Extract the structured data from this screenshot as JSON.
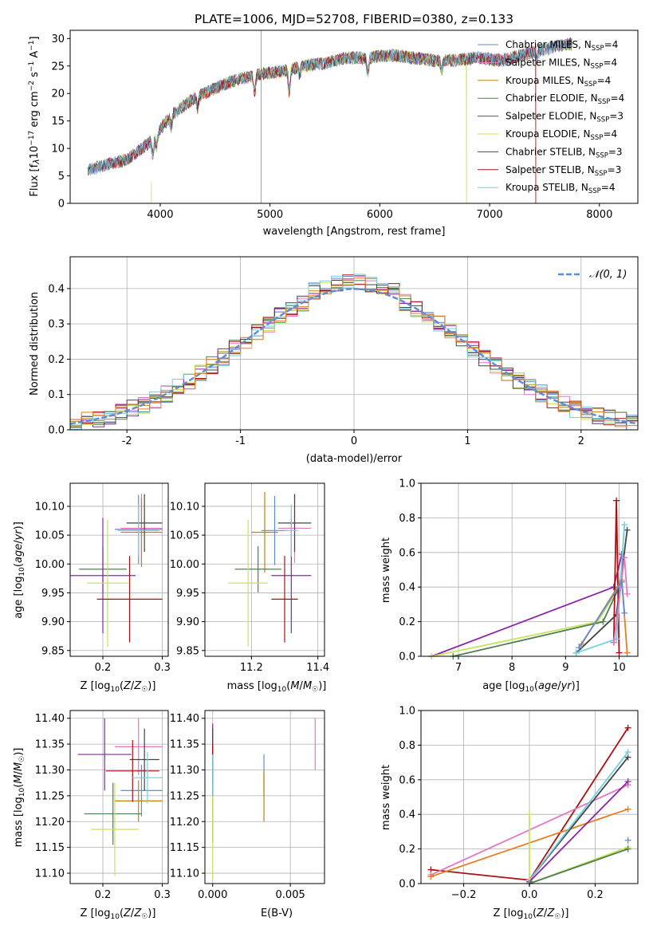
{
  "figure_title": "PLATE=1006, MJD=52708, FIBERID=0380, z=0.133",
  "colors": {
    "chabrier_miles": "#5f8dd3",
    "salpeter_miles": "#e377c2",
    "kroupa_miles": "#b8860b",
    "chabrier_elodie": "#4f7f4f",
    "salpeter_elodie": "#8e24aa",
    "kroupa_elodie": "#c6e35a",
    "chabrier_stelib": "#444444",
    "salpeter_stelib": "#aa1111",
    "kroupa_stelib": "#6fd0e0",
    "orange": "#e67e22",
    "gray": "#999999",
    "grid": "#b0b0b0"
  },
  "chart_data": [
    {
      "id": "spectrum",
      "type": "line",
      "xlabel": "wavelength [Angstrom, rest frame]",
      "ylabel": "Flux [f_λ 10^-17 erg cm^-2 s^-1 A^-1]",
      "xlim": [
        3180,
        8350
      ],
      "ylim": [
        0,
        31.5
      ],
      "xticks": [
        4000,
        5000,
        6000,
        7000,
        8000
      ],
      "yticks": [
        0,
        5,
        10,
        15,
        20,
        25,
        30
      ],
      "grid": false,
      "legend_position": "right",
      "legend": [
        {
          "main": "Chabrier MILES, N",
          "sub": "SSP",
          "tail": "=4"
        },
        {
          "main": "Salpeter MILES, N",
          "sub": "SSP",
          "tail": "=4"
        },
        {
          "main": "Kroupa MILES, N",
          "sub": "SSP",
          "tail": "=4"
        },
        {
          "main": "Chabrier ELODIE, N",
          "sub": "SSP",
          "tail": "=4"
        },
        {
          "main": "Salpeter ELODIE, N",
          "sub": "SSP",
          "tail": "=3"
        },
        {
          "main": "Kroupa ELODIE, N",
          "sub": "SSP",
          "tail": "=4"
        },
        {
          "main": "Chabrier STELIB, N",
          "sub": "SSP",
          "tail": "=3"
        },
        {
          "main": "Salpeter STELIB, N",
          "sub": "SSP",
          "tail": "=3"
        },
        {
          "main": "Kroupa STELIB, N",
          "sub": "SSP",
          "tail": "=4"
        }
      ],
      "continuum": {
        "x": [
          3340,
          3500,
          3700,
          3900,
          4100,
          4300,
          4500,
          4700,
          4900,
          5100,
          5300,
          5500,
          5700,
          5900,
          6100,
          6300,
          6500,
          6700,
          6900,
          7100,
          7300,
          7500,
          7700
        ],
        "y": [
          6,
          7,
          8,
          11,
          16,
          19,
          21,
          22.5,
          23.5,
          24,
          25,
          25.5,
          26.5,
          26.5,
          27,
          26.5,
          26,
          26,
          26.5,
          26,
          27,
          28,
          29
        ]
      },
      "notes": "Nine overlapping model spectra with deep absorption dips near 3950, 4860, 5180, 5890, 6780 and 7430 Angstrom"
    },
    {
      "id": "residual_hist",
      "type": "histogram",
      "xlabel": "(data-model)/error",
      "ylabel": "Normed distribution",
      "xlim": [
        -2.5,
        2.5
      ],
      "ylim": [
        0,
        0.49
      ],
      "xticks": [
        -2,
        -1,
        0,
        1,
        2
      ],
      "yticks": [
        0.0,
        0.1,
        0.2,
        0.3,
        0.4
      ],
      "grid": true,
      "legend_position": "top-right",
      "legend_label": "𝒩(0, 1)",
      "bin_width": 0.1
    },
    {
      "id": "age_vs_Z",
      "type": "errorbar",
      "xlabel": "Z [log10(Z/Z☉)]",
      "ylabel": "age  [log10(age/yr)]",
      "xlim": [
        0.145,
        0.31
      ],
      "ylim": [
        9.84,
        10.14
      ],
      "xticks": [
        0.2,
        0.3
      ],
      "xticklabels": [
        "0.2",
        "0.3"
      ],
      "yticks": [
        9.85,
        9.9,
        9.95,
        10.0,
        10.05,
        10.1
      ],
      "yticklabels": [
        "9.85",
        "9.90",
        "9.95",
        "10.00",
        "10.05",
        "10.10"
      ],
      "points": [
        {
          "color": "chabrier_miles",
          "x": 0.26,
          "xerr": 0.04,
          "y": 10.06,
          "yerr": 0.06
        },
        {
          "color": "salpeter_miles",
          "x": 0.265,
          "xerr": 0.035,
          "y": 10.062,
          "yerr": 0.06
        },
        {
          "color": "kroupa_miles",
          "x": 0.265,
          "xerr": 0.035,
          "y": 10.055,
          "yerr": 0.06
        },
        {
          "color": "chabrier_elodie",
          "x": 0.2,
          "xerr": 0.04,
          "y": 9.991,
          "yerr": 0.04
        },
        {
          "color": "salpeter_elodie",
          "x": 0.2,
          "xerr": 0.055,
          "y": 9.98,
          "yerr": 0.1
        },
        {
          "color": "kroupa_elodie",
          "x": 0.208,
          "xerr": 0.035,
          "y": 9.967,
          "yerr": 0.11
        },
        {
          "color": "chabrier_stelib",
          "x": 0.27,
          "xerr": 0.03,
          "y": 10.071,
          "yerr": 0.05
        },
        {
          "color": "salpeter_stelib",
          "x": 0.245,
          "xerr": 0.055,
          "y": 9.939,
          "yerr": 0.075
        },
        {
          "color": "kroupa_stelib",
          "x": 0.26,
          "xerr": 0.035,
          "y": 10.058,
          "yerr": 0.045
        }
      ]
    },
    {
      "id": "age_vs_mass",
      "type": "errorbar",
      "xlabel": "mass [log10(M/M☉)]",
      "ylabel": "",
      "xlim": [
        11.06,
        11.42
      ],
      "ylim": [
        9.84,
        10.14
      ],
      "xticks": [
        11.2,
        11.4
      ],
      "xticklabels": [
        "11.2",
        "11.4"
      ],
      "yticks": [
        9.85,
        9.9,
        9.95,
        10.0,
        10.05,
        10.1
      ],
      "yticklabels": [
        "9.85",
        "9.90",
        "9.95",
        "10.00",
        "10.05",
        "10.10"
      ],
      "points": [
        {
          "color": "chabrier_miles",
          "x": 11.27,
          "xerr": 0.04,
          "y": 10.058,
          "yerr": 0.06
        },
        {
          "color": "salpeter_miles",
          "x": 11.33,
          "xerr": 0.05,
          "y": 10.062,
          "yerr": 0.06
        },
        {
          "color": "kroupa_miles",
          "x": 11.24,
          "xerr": 0.04,
          "y": 10.055,
          "yerr": 0.07
        },
        {
          "color": "chabrier_elodie",
          "x": 11.22,
          "xerr": 0.07,
          "y": 9.991,
          "yerr": 0.04
        },
        {
          "color": "salpeter_elodie",
          "x": 11.32,
          "xerr": 0.06,
          "y": 9.98,
          "yerr": 0.1
        },
        {
          "color": "kroupa_elodie",
          "x": 11.19,
          "xerr": 0.06,
          "y": 9.967,
          "yerr": 0.11
        },
        {
          "color": "chabrier_stelib",
          "x": 11.33,
          "xerr": 0.05,
          "y": 10.071,
          "yerr": 0.05
        },
        {
          "color": "salpeter_stelib",
          "x": 11.3,
          "xerr": 0.04,
          "y": 9.939,
          "yerr": 0.075
        },
        {
          "color": "kroupa_stelib",
          "x": 11.32,
          "xerr": 0.02,
          "y": 10.058,
          "yerr": 0.045
        }
      ]
    },
    {
      "id": "mass_vs_Z",
      "type": "errorbar",
      "xlabel": "Z [log10(Z/Z☉)]",
      "ylabel": "mass [log10(M/M☉)]",
      "xlim": [
        0.145,
        0.31
      ],
      "ylim": [
        11.08,
        11.415
      ],
      "xticks": [
        0.2,
        0.3
      ],
      "xticklabels": [
        "0.2",
        "0.3"
      ],
      "yticks": [
        11.1,
        11.15,
        11.2,
        11.25,
        11.3,
        11.35,
        11.4
      ],
      "yticklabels": [
        "11.10",
        "11.15",
        "11.20",
        "11.25",
        "11.30",
        "11.35",
        "11.40"
      ],
      "points": [
        {
          "color": "chabrier_miles",
          "x": 0.265,
          "xerr": 0.035,
          "y": 11.26,
          "yerr": 0.05
        },
        {
          "color": "salpeter_miles",
          "x": 0.26,
          "xerr": 0.04,
          "y": 11.345,
          "yerr": 0.055
        },
        {
          "color": "kroupa_miles",
          "x": 0.26,
          "xerr": 0.04,
          "y": 11.24,
          "yerr": 0.04
        },
        {
          "color": "chabrier_elodie",
          "x": 0.217,
          "xerr": 0.048,
          "y": 11.215,
          "yerr": 0.06
        },
        {
          "color": "salpeter_elodie",
          "x": 0.203,
          "xerr": 0.045,
          "y": 11.33,
          "yerr": 0.07
        },
        {
          "color": "kroupa_elodie",
          "x": 0.22,
          "xerr": 0.04,
          "y": 11.185,
          "yerr": 0.09
        },
        {
          "color": "chabrier_stelib",
          "x": 0.27,
          "xerr": 0.025,
          "y": 11.32,
          "yerr": 0.06
        },
        {
          "color": "salpeter_stelib",
          "x": 0.25,
          "xerr": 0.045,
          "y": 11.298,
          "yerr": 0.06
        },
        {
          "color": "kroupa_stelib",
          "x": 0.275,
          "xerr": 0.025,
          "y": 11.285,
          "yerr": 0.05
        }
      ]
    },
    {
      "id": "mass_vs_ebv",
      "type": "errorbar",
      "xlabel": "E(B-V)",
      "ylabel": "",
      "xlim": [
        -0.0005,
        0.0072
      ],
      "ylim": [
        11.08,
        11.415
      ],
      "xticks": [
        0.0,
        0.005
      ],
      "xticklabels": [
        "0.000",
        "0.005"
      ],
      "yticks": [
        11.1,
        11.15,
        11.2,
        11.25,
        11.3,
        11.35,
        11.4
      ],
      "yticklabels": [
        "11.10",
        "11.15",
        "11.20",
        "11.25",
        "11.30",
        "11.35",
        "11.40"
      ],
      "points": [
        {
          "color": "chabrier_miles",
          "x": 0.0033,
          "xerr": 0,
          "y": 11.29,
          "yerr": 0.04
        },
        {
          "color": "salpeter_miles",
          "x": 0.0066,
          "xerr": 0,
          "y": 11.35,
          "yerr": 0.05
        },
        {
          "color": "kroupa_miles",
          "x": 0.0033,
          "xerr": 0,
          "y": 11.25,
          "yerr": 0.05
        },
        {
          "color": "chabrier_elodie",
          "x": 0.0,
          "xerr": 0,
          "y": 11.22,
          "yerr": 0.06
        },
        {
          "color": "salpeter_elodie",
          "x": 0.0,
          "xerr": 0,
          "y": 11.33,
          "yerr": 0.06
        },
        {
          "color": "kroupa_elodie",
          "x": 0.0,
          "xerr": 0,
          "y": 11.18,
          "yerr": 0.09
        },
        {
          "color": "chabrier_stelib",
          "x": 0.0,
          "xerr": 0,
          "y": 11.33,
          "yerr": 0.05
        },
        {
          "color": "salpeter_stelib",
          "x": 0.0,
          "xerr": 0,
          "y": 11.3,
          "yerr": 0.05
        },
        {
          "color": "kroupa_stelib",
          "x": 0.0,
          "xerr": 0,
          "y": 11.29,
          "yerr": 0.04
        }
      ]
    },
    {
      "id": "weight_vs_age",
      "type": "line",
      "xlabel": "age  [log10(age/yr)]",
      "ylabel": "mass weight",
      "xlim": [
        6.3,
        10.35
      ],
      "ylim": [
        0,
        1.0
      ],
      "xticks": [
        7,
        8,
        9,
        10
      ],
      "xticklabels": [
        "7",
        "8",
        "9",
        "10"
      ],
      "yticks": [
        0.0,
        0.2,
        0.4,
        0.6,
        0.8,
        1.0
      ],
      "yticklabels": [
        "0.0",
        "0.2",
        "0.4",
        "0.6",
        "0.8",
        "1.0"
      ],
      "grid": true,
      "series": [
        {
          "color": "salpeter_elodie",
          "x": [
            6.5,
            9.9,
            10.05
          ],
          "y": [
            0.0,
            0.4,
            0.59
          ]
        },
        {
          "color": "kroupa_elodie",
          "x": [
            6.5,
            9.6,
            10.0
          ],
          "y": [
            0.0,
            0.2,
            0.4
          ]
        },
        {
          "color": "chabrier_elodie",
          "x": [
            6.9,
            9.7,
            10.0
          ],
          "y": [
            0.0,
            0.2,
            0.4
          ]
        },
        {
          "color": "chabrier_stelib",
          "x": [
            9.2,
            9.95,
            10.15
          ],
          "y": [
            0.02,
            0.24,
            0.73
          ]
        },
        {
          "color": "salpeter_stelib",
          "x": [
            9.9,
            9.95,
            10.0
          ],
          "y": [
            0.08,
            0.9,
            0.02
          ]
        },
        {
          "color": "kroupa_stelib",
          "x": [
            9.2,
            9.95,
            10.1
          ],
          "y": [
            0.02,
            0.1,
            0.76
          ]
        },
        {
          "color": "orange",
          "x": [
            9.3,
            10.05,
            10.15
          ],
          "y": [
            0.07,
            0.44,
            0.02
          ]
        },
        {
          "color": "salpeter_miles",
          "x": [
            9.9,
            10.1,
            10.15
          ],
          "y": [
            0.08,
            0.57,
            0.36
          ]
        },
        {
          "color": "chabrier_miles",
          "x": [
            9.25,
            10.05,
            10.1
          ],
          "y": [
            0.05,
            0.43,
            0.25
          ]
        }
      ]
    },
    {
      "id": "weight_vs_Z",
      "type": "line",
      "xlabel": "Z [log10(Z/Z☉)]",
      "ylabel": "mass weight",
      "xlim": [
        -0.33,
        0.33
      ],
      "ylim": [
        0,
        1.0
      ],
      "xticks": [
        -0.2,
        0.0,
        0.2
      ],
      "xticklabels": [
        "−0.2",
        "0.0",
        "0.2"
      ],
      "yticks": [
        0.0,
        0.2,
        0.4,
        0.6,
        0.8,
        1.0
      ],
      "yticklabels": [
        "0.0",
        "0.2",
        "0.4",
        "0.6",
        "0.8",
        "1.0"
      ],
      "grid": true,
      "series": [
        {
          "color": "salpeter_stelib",
          "x": [
            -0.3,
            0.0,
            0.3
          ],
          "y": [
            0.08,
            0.02,
            0.9
          ]
        },
        {
          "color": "salpeter_miles",
          "x": [
            -0.3,
            0.3
          ],
          "y": [
            0.05,
            0.57
          ]
        },
        {
          "color": "orange",
          "x": [
            -0.3,
            0.3
          ],
          "y": [
            0.04,
            0.43
          ]
        },
        {
          "color": "chabrier_stelib",
          "x": [
            0.0,
            0.3
          ],
          "y": [
            0.02,
            0.73
          ]
        },
        {
          "color": "kroupa_stelib",
          "x": [
            0.0,
            0.3
          ],
          "y": [
            0.02,
            0.76
          ]
        },
        {
          "color": "salpeter_elodie",
          "x": [
            0.0,
            0.3
          ],
          "y": [
            0.01,
            0.59
          ]
        },
        {
          "color": "kroupa_elodie",
          "x": [
            0.0,
            0.0,
            0.3
          ],
          "y": [
            0.4,
            0.0,
            0.21
          ]
        },
        {
          "color": "chabrier_elodie",
          "x": [
            0.0,
            0.3
          ],
          "y": [
            0.0,
            0.2
          ]
        },
        {
          "color": "chabrier_miles",
          "x": [
            0.3
          ],
          "y": [
            0.25
          ]
        }
      ]
    }
  ]
}
